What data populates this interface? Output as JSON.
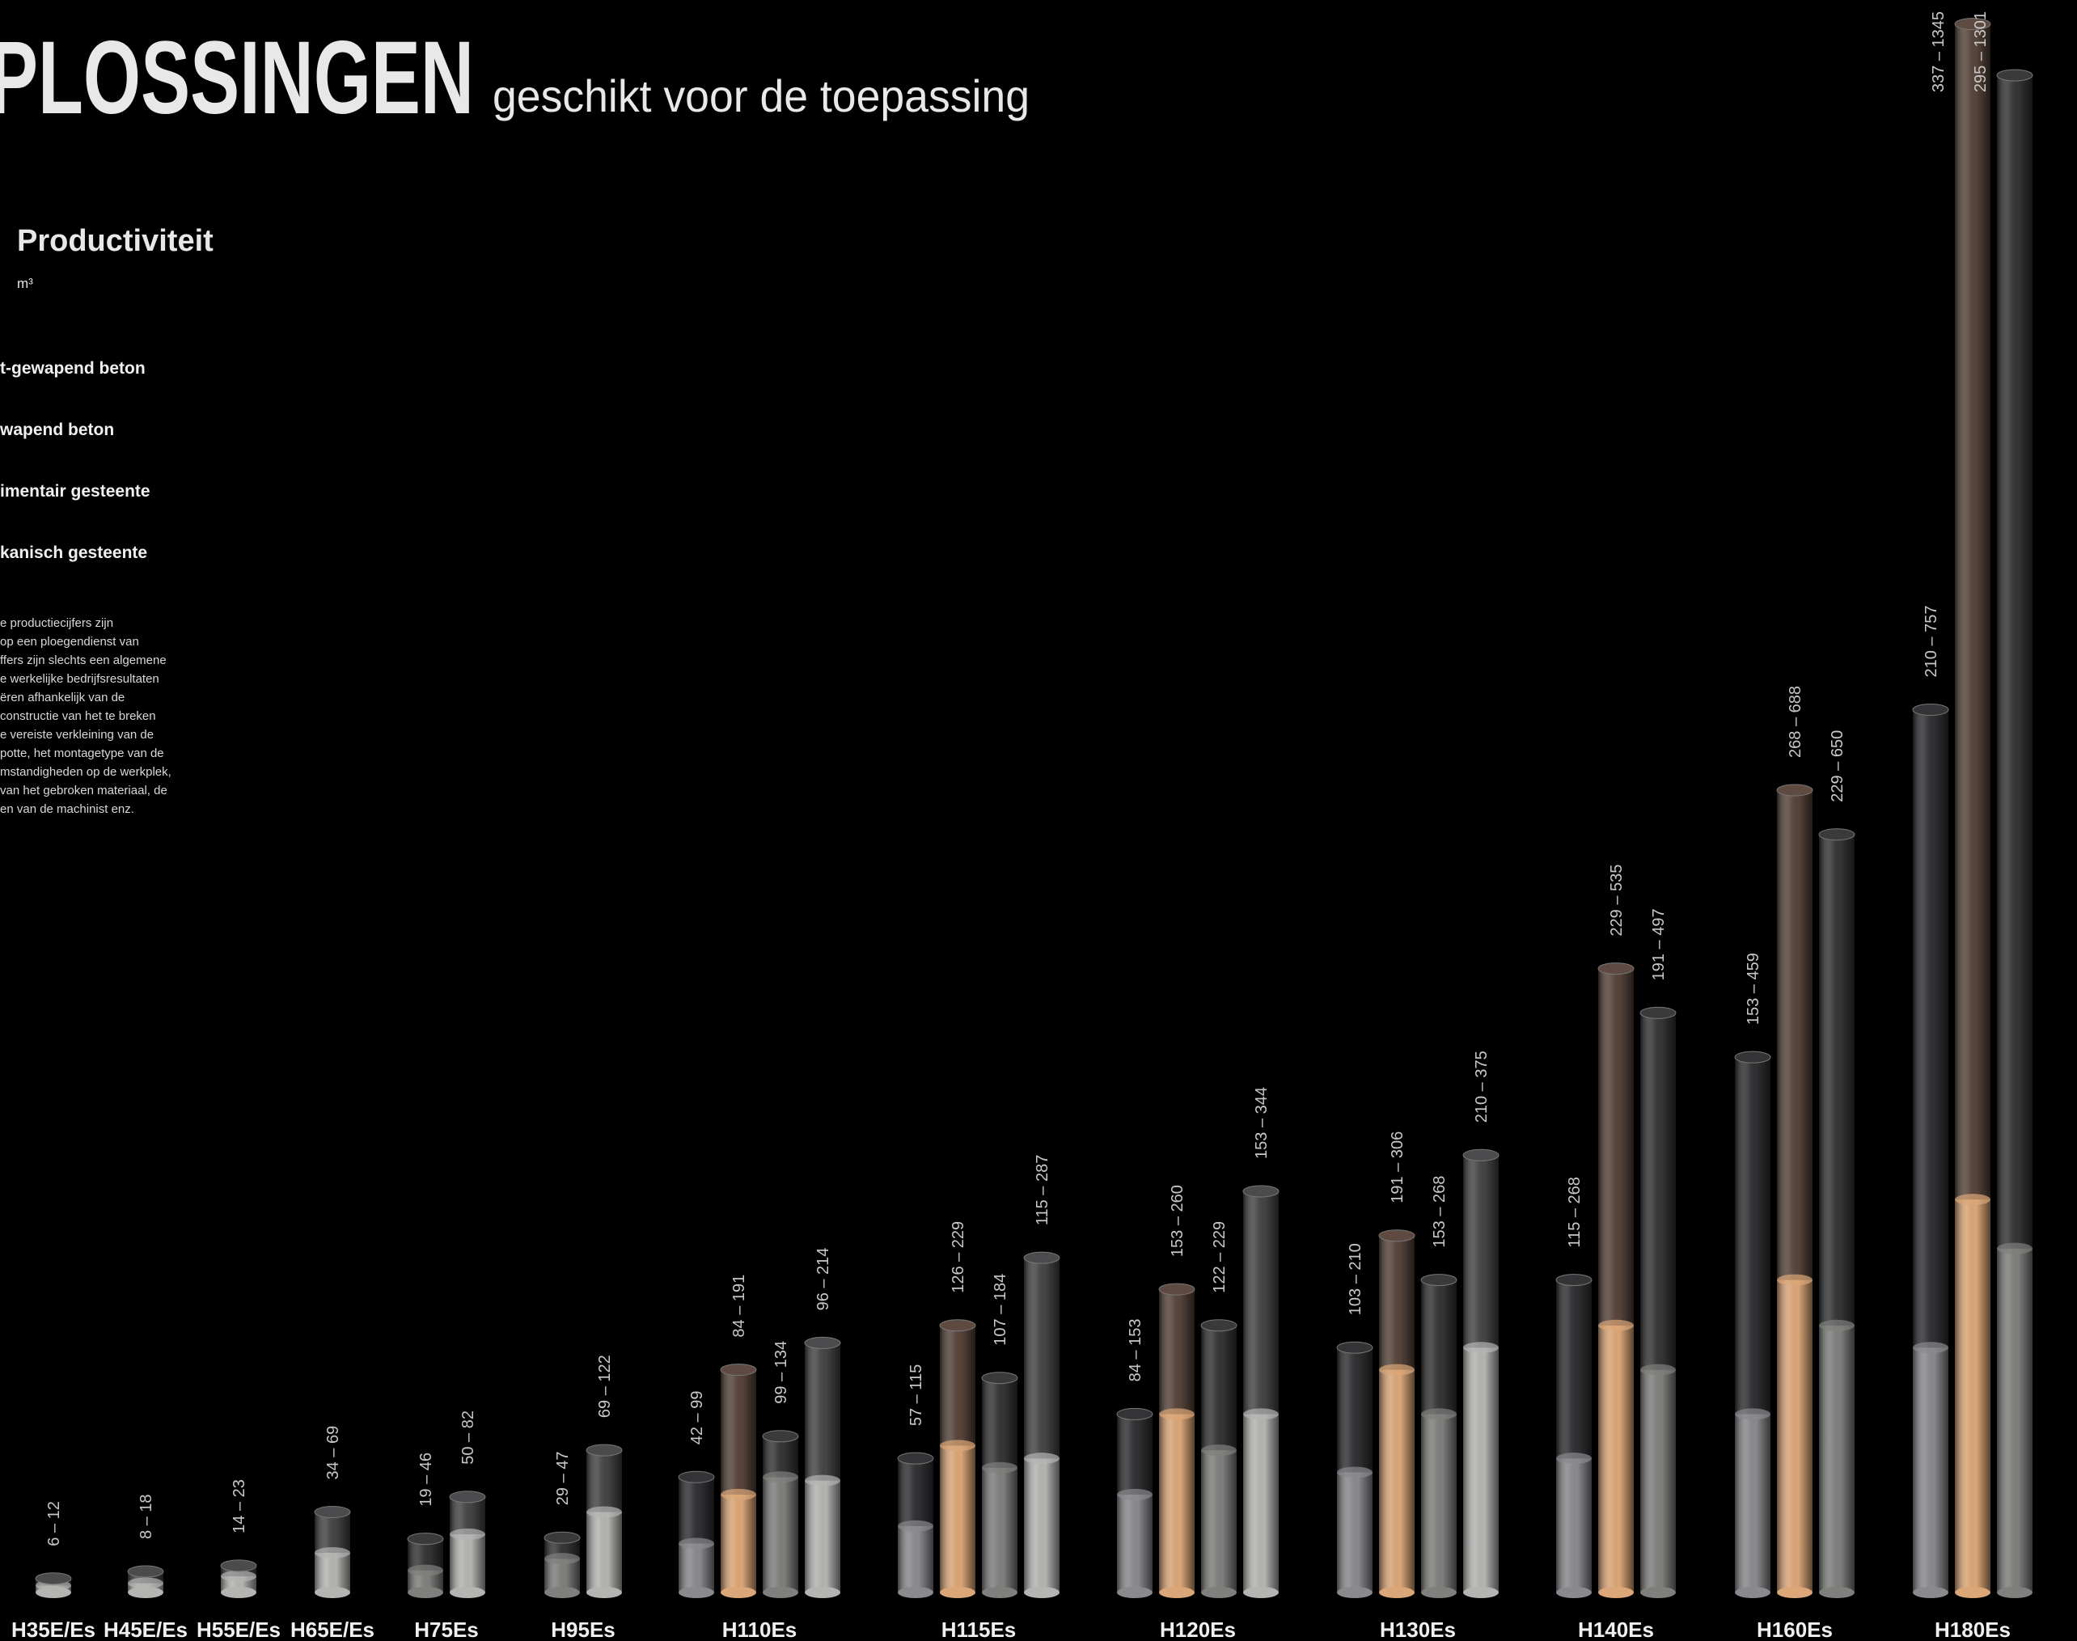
{
  "chart_data": {
    "type": "range-cylinder",
    "title": "PLOSSINGEN",
    "subtitle": "geschikt voor de toepassing",
    "heading": "Productiviteit",
    "unit": "m³",
    "note": [
      "e productiecijfers zijn",
      "op een ploegendienst van",
      "ffers zijn slechts een algemene",
      "e werkelijke bedrijfsresultaten",
      "ëren afhankelijk van de",
      " constructie van het te breken",
      "e vereiste verkleining van de",
      "potte, het montagetype van de",
      "mstandigheden op de werkplek,",
      "van het gebroken materiaal, de",
      "en van de machinist enz."
    ],
    "categories": [
      "H35E/Es",
      "H45E/Es",
      "H55E/Es",
      "H65E/Es",
      "H75Es",
      "H95Es",
      "H110Es",
      "H115Es",
      "H120Es",
      "H130Es",
      "H140Es",
      "H160Es",
      "H180Es"
    ],
    "ylim": [
      0,
      1360
    ],
    "series": [
      {
        "name": "t-gewapend beton",
        "color": "#4b4b4d",
        "base_color": "#b4b4b2",
        "low": [
          6,
          8,
          14,
          34,
          50,
          69,
          96,
          115,
          153,
          210,
          null,
          null,
          null
        ],
        "high": [
          12,
          18,
          23,
          69,
          82,
          122,
          214,
          287,
          344,
          375,
          null,
          null,
          null
        ],
        "value_labels": [
          "6 – 12",
          "8 – 18",
          "14 – 23",
          "34 – 69",
          "50 – 82",
          "69 – 122",
          "96 – 214",
          "115 – 287",
          "153 – 344",
          "210 – 375",
          null,
          null,
          null
        ]
      },
      {
        "name": "wapend beton",
        "color": "#3a3a3b",
        "base_color": "#7f807e",
        "low": [
          null,
          null,
          null,
          null,
          19,
          29,
          99,
          107,
          122,
          153,
          191,
          229,
          295
        ],
        "high": [
          null,
          null,
          null,
          null,
          46,
          47,
          134,
          184,
          229,
          268,
          497,
          650,
          1301
        ],
        "value_labels": [
          null,
          null,
          null,
          null,
          "19 – 46",
          "29 – 47",
          "99 – 134",
          "107 – 184",
          "122 – 229",
          "153 – 268",
          "191 – 497",
          "229 – 650",
          "295 – 1301"
        ]
      },
      {
        "name": "imentair gesteente",
        "color": "#5e4a40",
        "base_color": "#dba678",
        "low": [
          null,
          null,
          null,
          null,
          null,
          null,
          84,
          126,
          153,
          191,
          229,
          268,
          337
        ],
        "high": [
          null,
          null,
          null,
          null,
          null,
          null,
          191,
          229,
          260,
          306,
          535,
          688,
          1345
        ],
        "value_labels": [
          null,
          null,
          null,
          null,
          null,
          null,
          "84 – 191",
          "126 – 229",
          "153 – 260",
          "191 – 306",
          "229 – 535",
          "268 – 688",
          "337 – 1345"
        ]
      },
      {
        "name": "kanisch gesteente",
        "color": "#343437",
        "base_color": "#8a8a8e",
        "low": [
          null,
          null,
          null,
          null,
          null,
          null,
          42,
          57,
          84,
          103,
          115,
          153,
          210
        ],
        "high": [
          null,
          null,
          null,
          null,
          null,
          null,
          99,
          115,
          153,
          210,
          268,
          459,
          757
        ],
        "value_labels": [
          null,
          null,
          null,
          null,
          null,
          null,
          "42 – 99",
          "57 – 115",
          "84 – 153",
          "103 – 210",
          "115 – 268",
          "153 – 459",
          "210 – 757"
        ]
      }
    ]
  }
}
